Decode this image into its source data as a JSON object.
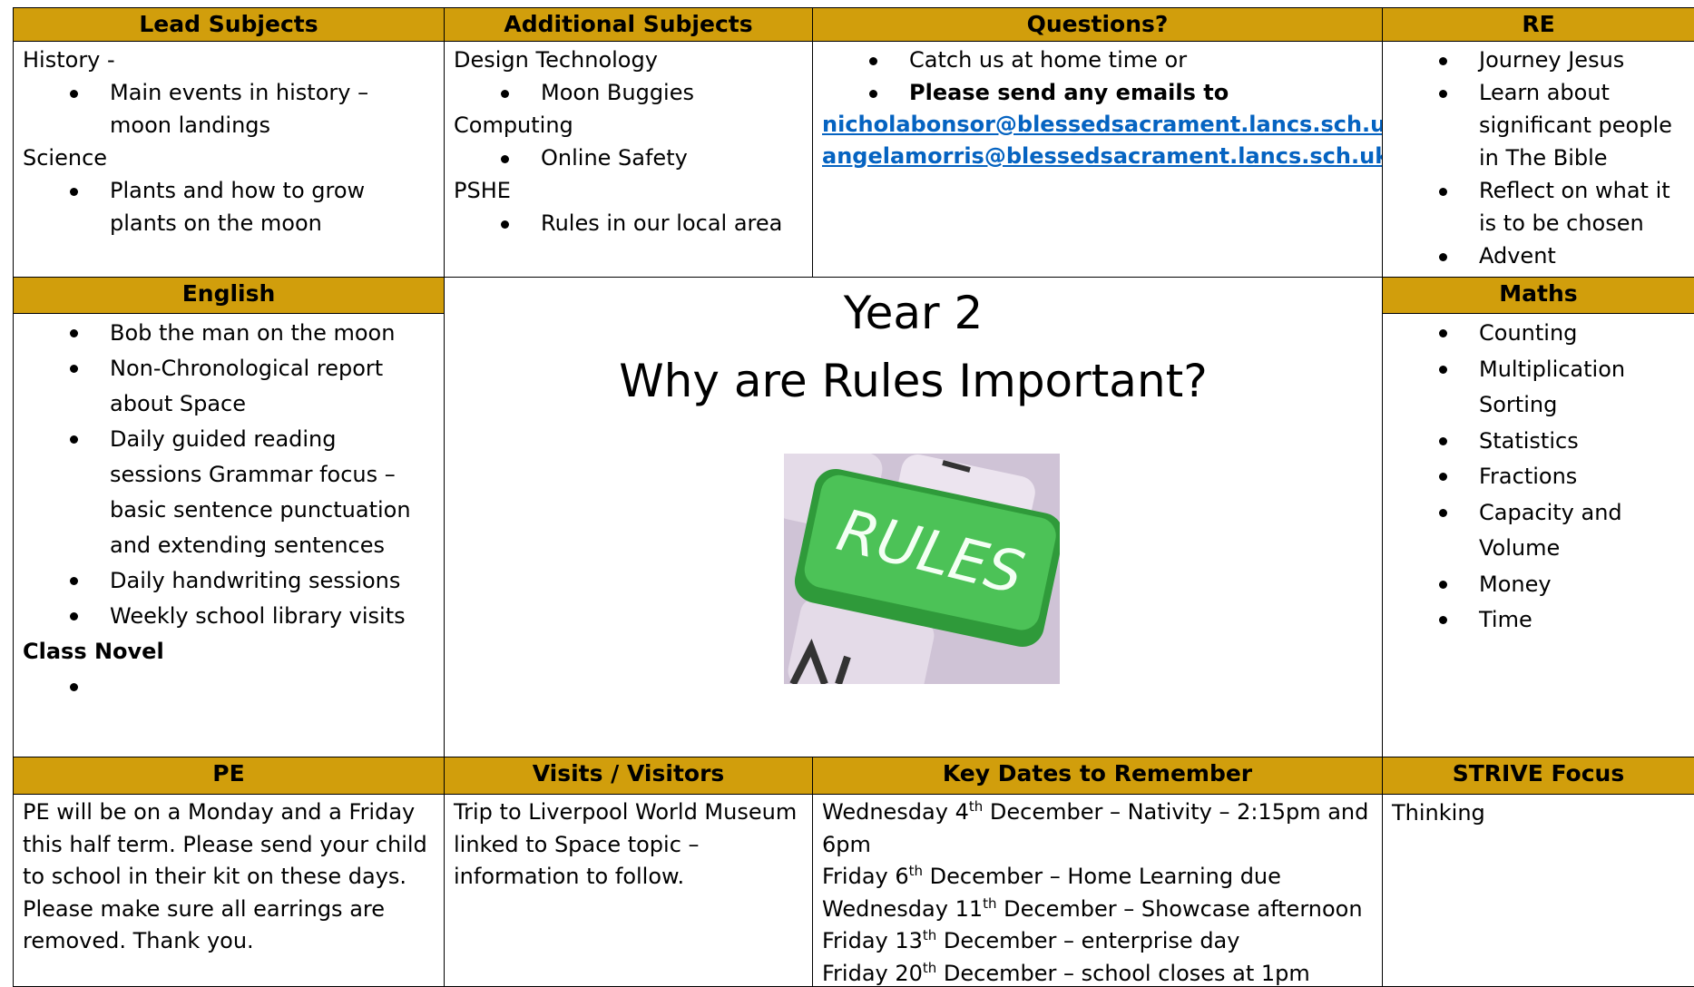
{
  "lead_subjects": {
    "title": "Lead Subjects",
    "groups": [
      {
        "heading": "History -",
        "bullets": [
          "Main events in history – moon landings"
        ]
      },
      {
        "heading": "Science",
        "bullets": [
          "Plants and how to grow plants on the moon"
        ]
      }
    ]
  },
  "additional_subjects": {
    "title": "Additional Subjects",
    "groups": [
      {
        "heading": "Design Technology",
        "bullets": [
          "Moon Buggies"
        ]
      },
      {
        "heading": "Computing",
        "bullets": [
          "Online Safety"
        ]
      },
      {
        "heading": "PSHE",
        "bullets": [
          "Rules in our local area"
        ]
      }
    ]
  },
  "questions": {
    "title": "Questions?",
    "bullets": [
      "Catch us at home time or",
      "Please send any emails to"
    ],
    "emails": [
      "nicholabonsor@blessedsacrament.lancs.sch.uk",
      "angelamorris@blessedsacrament.lancs.sch.uk"
    ]
  },
  "re": {
    "title": "RE",
    "bullets": [
      "Journey Jesus",
      "Learn about significant people in The Bible",
      "Reflect on what it is to be chosen",
      "Advent"
    ]
  },
  "english": {
    "title": "English",
    "bullets": [
      "Bob the man on the moon",
      "Non-Chronological report about Space",
      "Daily guided reading sessions Grammar focus – basic sentence punctuation and extending sentences",
      "Daily handwriting sessions",
      "Weekly school library visits"
    ],
    "novel_heading": "Class Novel"
  },
  "centre": {
    "year": "Year 2",
    "question": "Why are Rules Important?",
    "image_text": "RULES"
  },
  "maths": {
    "title": "Maths",
    "bullets": [
      "Counting",
      "Multiplication Sorting",
      "Statistics",
      "Fractions",
      "Capacity and Volume",
      "Money",
      "Time"
    ]
  },
  "pe": {
    "title": "PE",
    "text": "PE will be on a Monday and a Friday this half term. Please send your child to school in their kit on these days. Please make sure all earrings are removed. Thank you."
  },
  "visits": {
    "title": "Visits / Visitors",
    "text": "Trip to Liverpool World Museum linked to Space topic – information to follow."
  },
  "key_dates": {
    "title": "Key Dates to Remember",
    "dates": [
      {
        "before": "Wednesday 4",
        "sup": "th",
        "after": " December – Nativity – 2:15pm and 6pm"
      },
      {
        "before": "Friday 6",
        "sup": "th",
        "after": " December – Home Learning due"
      },
      {
        "before": "Wednesday 11",
        "sup": "th",
        "after": " December – Showcase afternoon"
      },
      {
        "before": "Friday 13",
        "sup": "th",
        "after": " December – enterprise day"
      },
      {
        "before": "Friday 20",
        "sup": "th",
        "after": " December – school closes at 1pm"
      }
    ]
  },
  "strive": {
    "title": "STRIVE Focus",
    "text": "Thinking"
  }
}
